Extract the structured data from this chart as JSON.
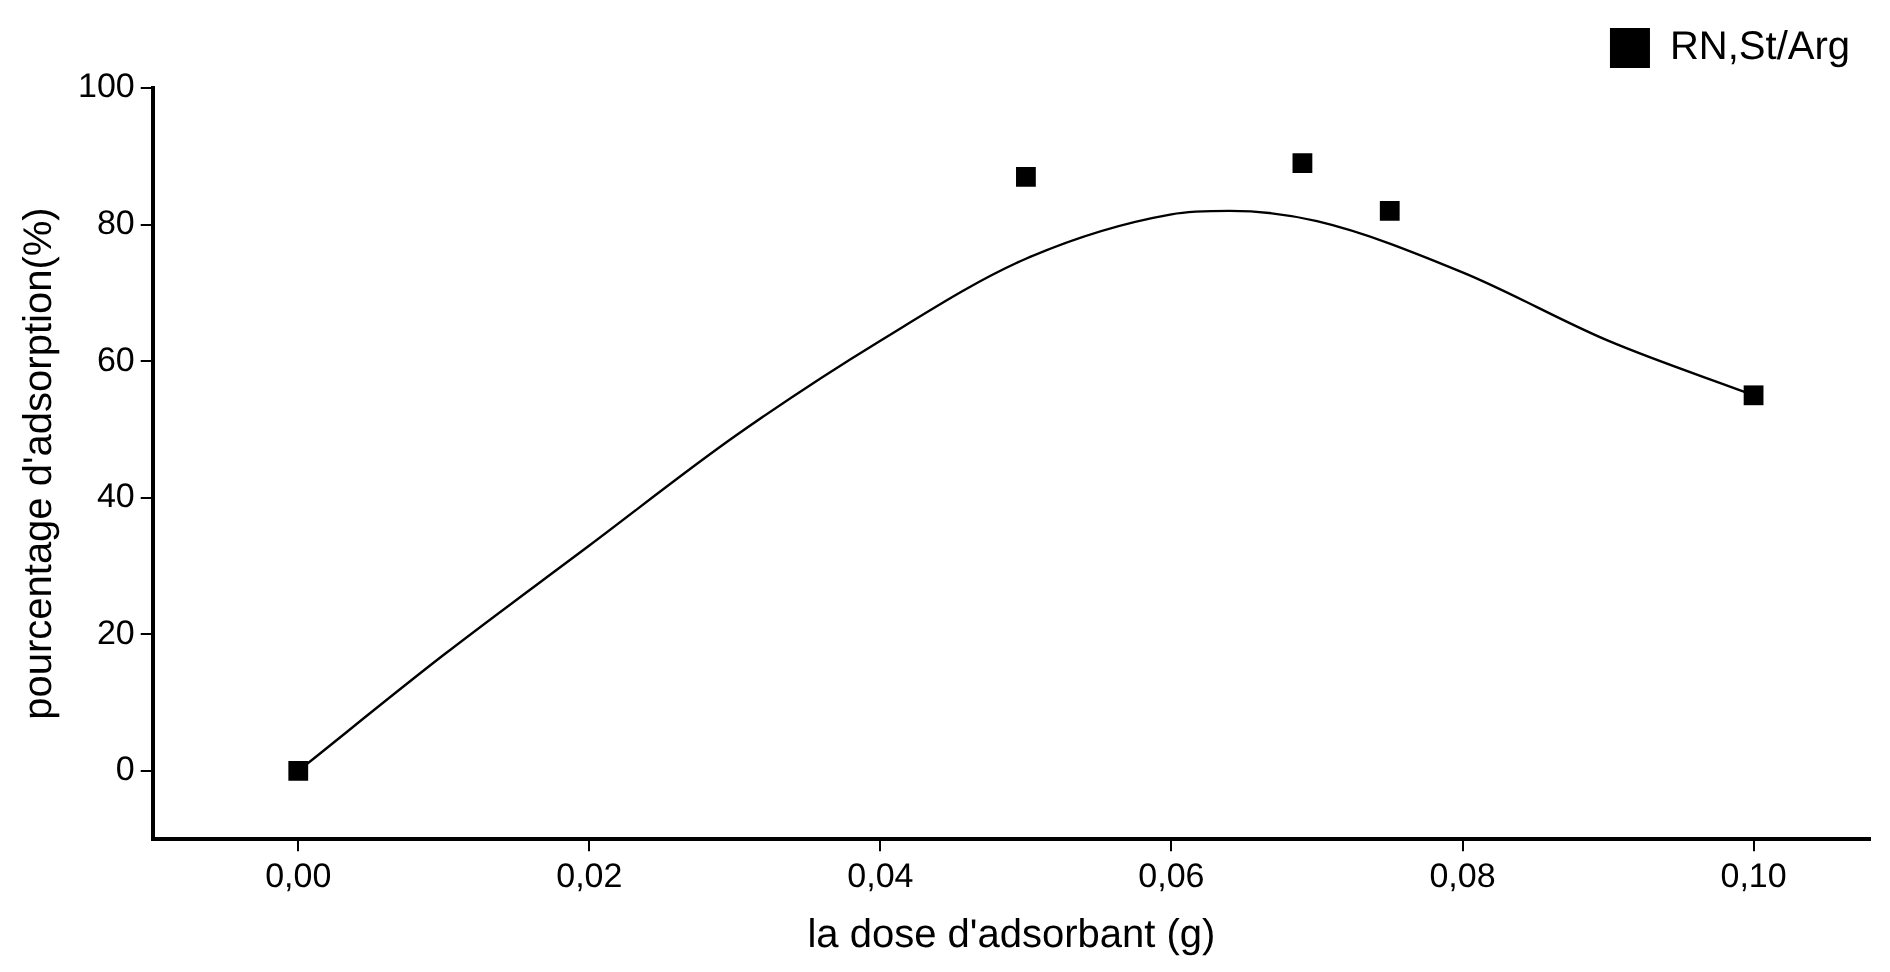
{
  "chart_data": {
    "type": "scatter",
    "xlabel": "la dose d'adsorbant (g)",
    "ylabel": "pourcentage d'adsorption(%)",
    "xlim": [
      -0.01,
      0.108
    ],
    "xticks": [
      {
        "value": 0,
        "label": "0,00"
      },
      {
        "value": 0.02,
        "label": "0,02"
      },
      {
        "value": 0.04,
        "label": "0,04"
      },
      {
        "value": 0.06,
        "label": "0,06"
      },
      {
        "value": 0.08,
        "label": "0,08"
      },
      {
        "value": 0.1,
        "label": "0,10"
      }
    ],
    "ylim": [
      -10,
      100
    ],
    "yticks": [
      0,
      20,
      40,
      60,
      80,
      100
    ],
    "grid": false,
    "legend": "top right",
    "marker": "square",
    "series": [
      {
        "name": "RN,St/Arg",
        "color": "#000000",
        "x": [
          0,
          0.05,
          0.069,
          0.075,
          0.1
        ],
        "values": [
          0,
          87,
          89,
          82,
          55
        ]
      },
      {
        "type": "line",
        "color": "#000000",
        "marker": "none",
        "x": [
          0,
          0.01,
          0.02,
          0.03,
          0.04,
          0.05,
          0.06,
          0.064,
          0.07,
          0.08,
          0.09,
          0.1
        ],
        "values": [
          0,
          17,
          33,
          49,
          63,
          75,
          81.5,
          82,
          80.5,
          73,
          63,
          55
        ]
      }
    ]
  }
}
